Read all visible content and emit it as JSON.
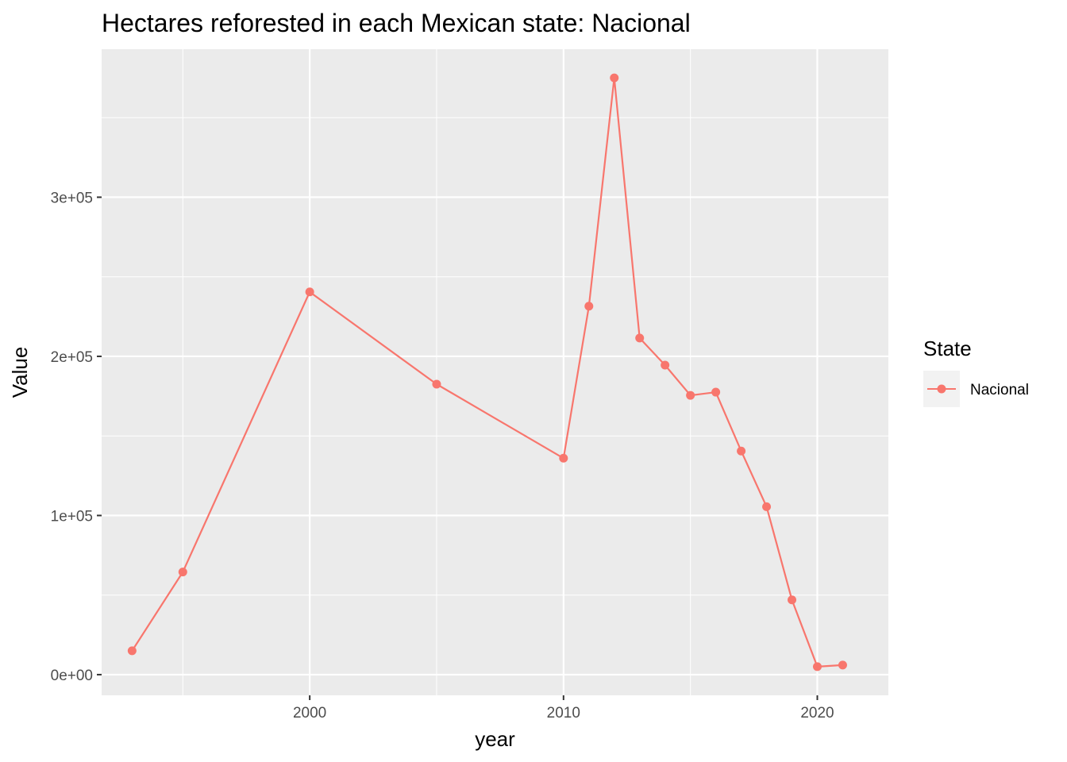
{
  "chart_data": {
    "type": "line",
    "title": "Hectares reforested in each Mexican state: Nacional",
    "xlabel": "year",
    "ylabel": "Value",
    "xlim": [
      1991.8,
      2022.8
    ],
    "ylim": [
      -13000,
      393000
    ],
    "x_ticks": [
      {
        "value": 2000,
        "label": "2000"
      },
      {
        "value": 2010,
        "label": "2010"
      },
      {
        "value": 2020,
        "label": "2020"
      }
    ],
    "y_ticks": [
      {
        "value": 0,
        "label": "0e+00"
      },
      {
        "value": 100000,
        "label": "1e+05"
      },
      {
        "value": 200000,
        "label": "2e+05"
      },
      {
        "value": 300000,
        "label": "3e+05"
      }
    ],
    "grid": true,
    "legend": {
      "title": "State",
      "position": "right"
    },
    "series": [
      {
        "name": "Nacional",
        "color": "#F8766D",
        "x": [
          1993,
          1995,
          2000,
          2005,
          2010,
          2011,
          2012,
          2013,
          2014,
          2015,
          2016,
          2017,
          2018,
          2019,
          2020,
          2021
        ],
        "values": [
          15000,
          64500,
          240500,
          182500,
          136000,
          231500,
          375000,
          211500,
          194500,
          175500,
          177500,
          140500,
          105500,
          47000,
          5000,
          6000
        ]
      }
    ]
  }
}
